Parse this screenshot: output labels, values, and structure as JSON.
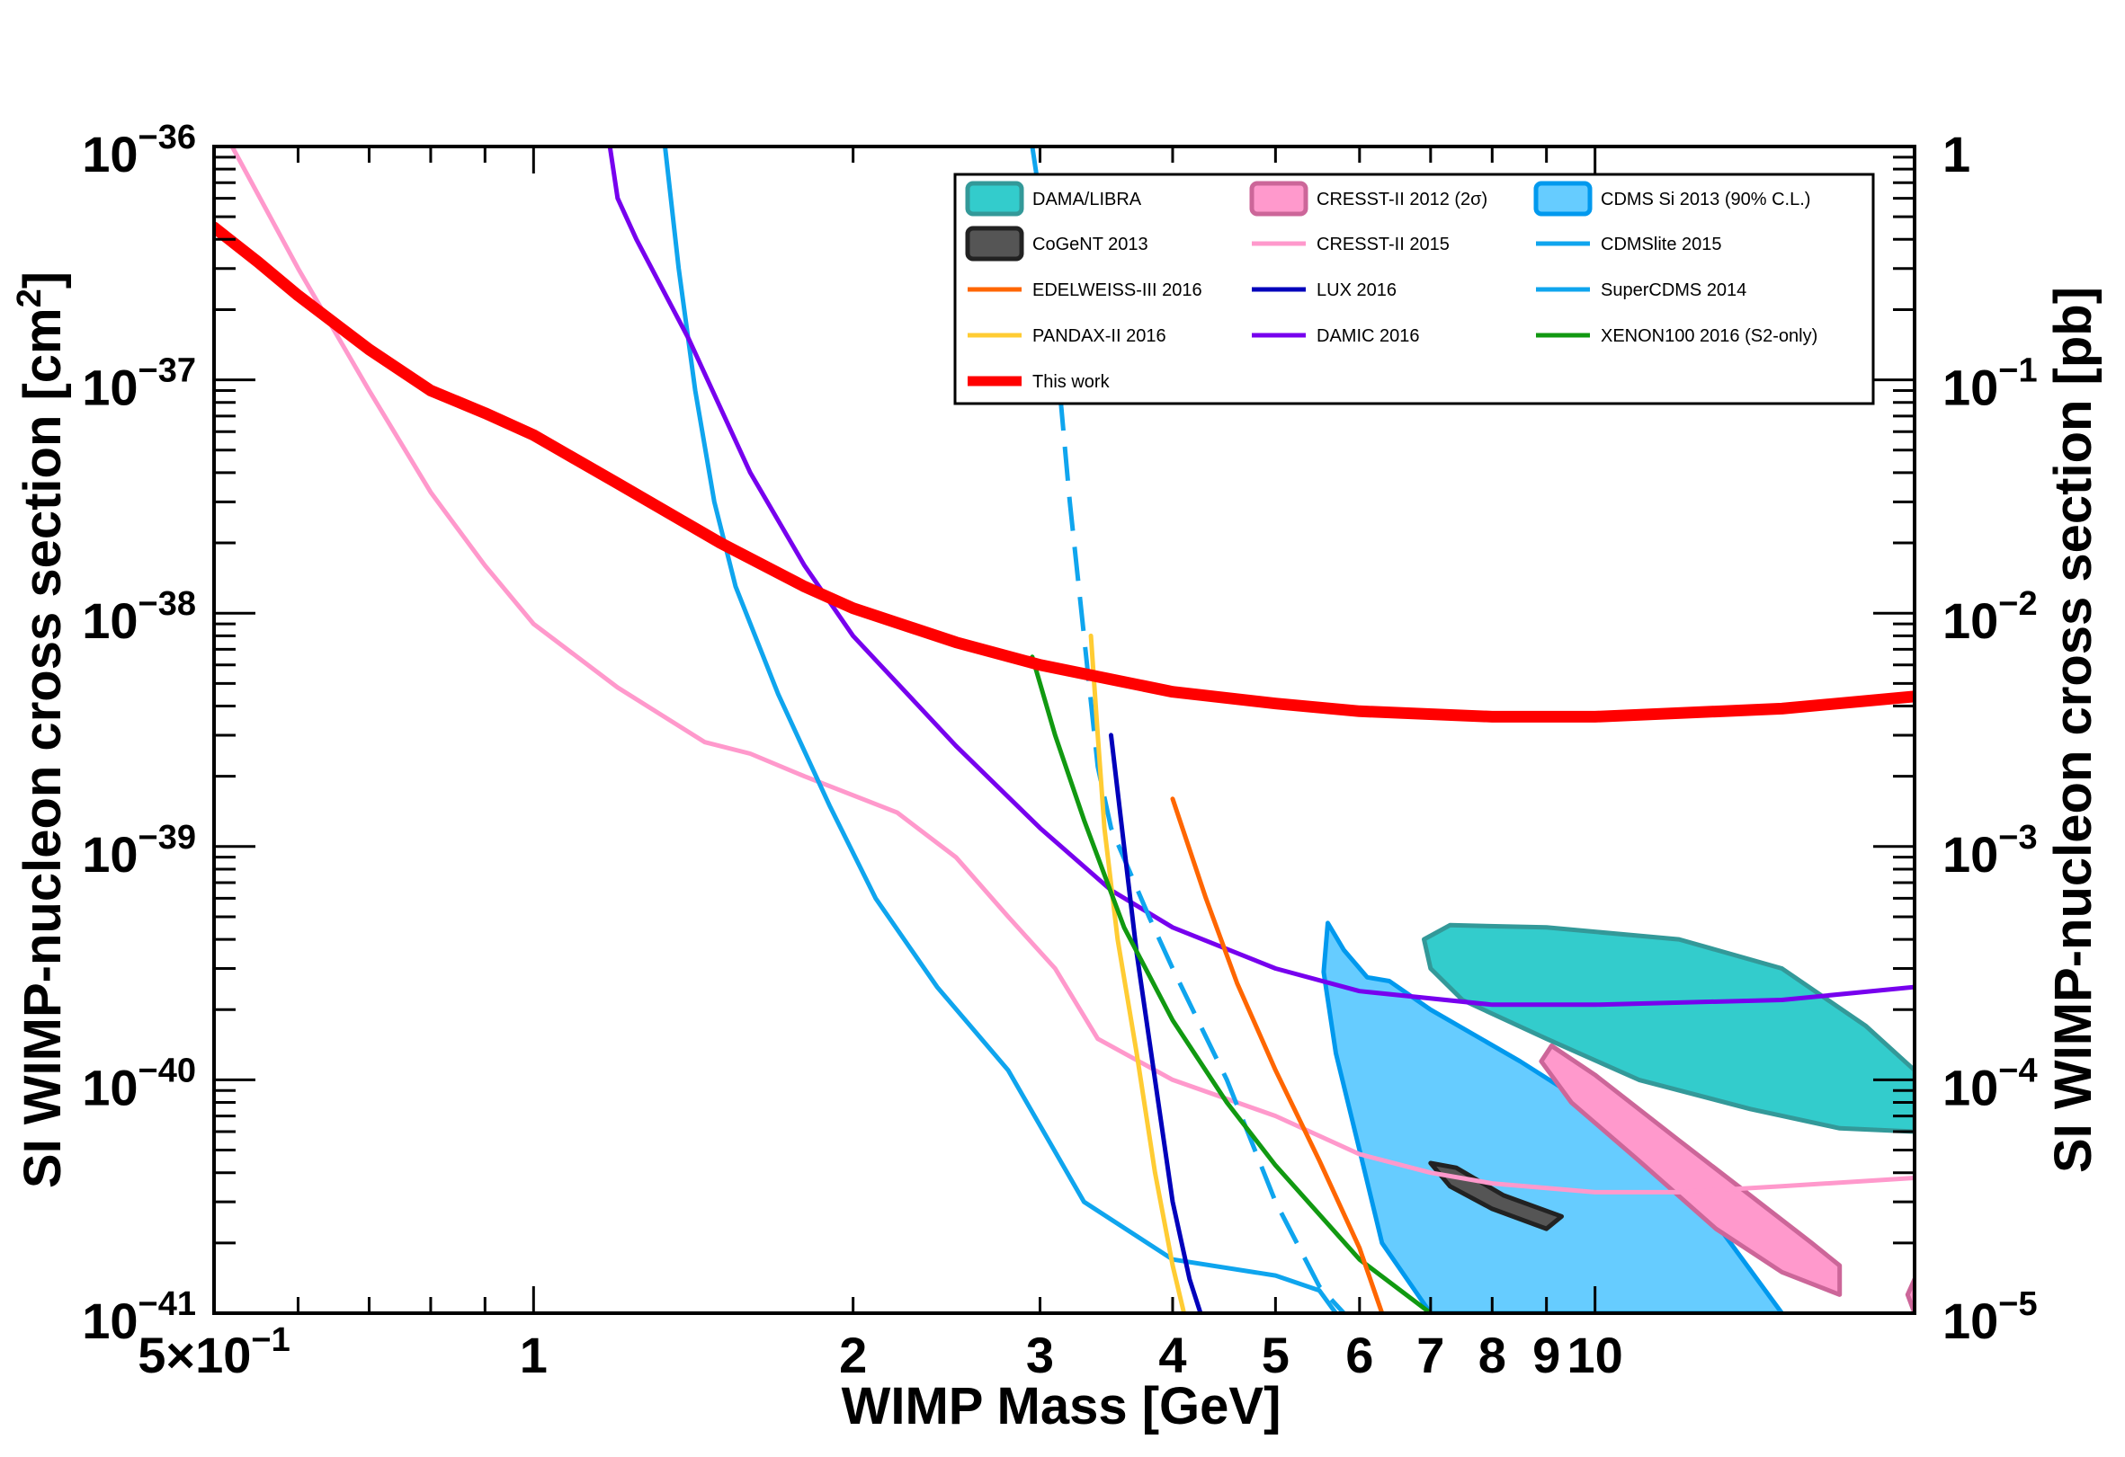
{
  "chart_data": {
    "type": "line",
    "xscale": "log",
    "yscale": "log",
    "xlim": [
      0.5,
      20
    ],
    "ylim": [
      1e-41,
      1e-36
    ],
    "y2lim": [
      1e-05,
      1
    ],
    "xlabel": "WIMP Mass [GeV]",
    "ylabel": "SI WIMP-nucleon cross section [cm",
    "ylabel_sup": "2",
    "ylabel_end": "]",
    "y2label": "SI WIMP-nucleon cross section [pb]",
    "x_tick_labels": [
      {
        "v": 0.5,
        "t": "5×10",
        "sup": "−1"
      },
      {
        "v": 1,
        "t": "1"
      },
      {
        "v": 2,
        "t": "2"
      },
      {
        "v": 3,
        "t": "3"
      },
      {
        "v": 4,
        "t": "4"
      },
      {
        "v": 5,
        "t": "5"
      },
      {
        "v": 6,
        "t": "6"
      },
      {
        "v": 7,
        "t": "7"
      },
      {
        "v": 8,
        "t": "8"
      },
      {
        "v": 9,
        "t": "9"
      },
      {
        "v": 10,
        "t": "10"
      }
    ],
    "y_tick_labels": [
      {
        "e": -36,
        "t": "10",
        "sup": "−36"
      },
      {
        "e": -37,
        "t": "10",
        "sup": "−37"
      },
      {
        "e": -38,
        "t": "10",
        "sup": "−38"
      },
      {
        "e": -39,
        "t": "10",
        "sup": "−39"
      },
      {
        "e": -40,
        "t": "10",
        "sup": "−40"
      },
      {
        "e": -41,
        "t": "10",
        "sup": "−41"
      }
    ],
    "y2_tick_labels": [
      {
        "e": -36,
        "t": "1",
        "sup": ""
      },
      {
        "e": -37,
        "t": "10",
        "sup": "−1"
      },
      {
        "e": -38,
        "t": "10",
        "sup": "−2"
      },
      {
        "e": -39,
        "t": "10",
        "sup": "−3"
      },
      {
        "e": -40,
        "t": "10",
        "sup": "−4"
      },
      {
        "e": -41,
        "t": "10",
        "sup": "−5"
      }
    ],
    "legend": [
      {
        "label": "DAMA/LIBRA",
        "kind": "box",
        "color": "#33cccc",
        "stroke": "#339999"
      },
      {
        "label": "CRESST-II 2012 (2σ)",
        "kind": "box",
        "color": "#ff99cc",
        "stroke": "#cc6699"
      },
      {
        "label": "CDMS Si 2013 (90% C.L.)",
        "kind": "box",
        "color": "#66ccff",
        "stroke": "#0099ee"
      },
      {
        "label": "CoGeNT 2013",
        "kind": "box",
        "color": "#555555",
        "stroke": "#222222"
      },
      {
        "label": "CRESST-II 2015",
        "kind": "line",
        "color": "#ff99cc"
      },
      {
        "label": "CDMSlite 2015",
        "kind": "line",
        "color": "#0fa5ee"
      },
      {
        "label": "EDELWEISS-III 2016",
        "kind": "line",
        "color": "#ff6600"
      },
      {
        "label": "LUX 2016",
        "kind": "line",
        "color": "#0000bb"
      },
      {
        "label": "SuperCDMS 2014",
        "kind": "line",
        "color": "#0fa5ee"
      },
      {
        "label": "PANDAX-II 2016",
        "kind": "line",
        "color": "#ffcc33"
      },
      {
        "label": "DAMIC 2016",
        "kind": "line",
        "color": "#7700ee"
      },
      {
        "label": "XENON100 2016 (S2-only)",
        "kind": "line",
        "color": "#119911"
      },
      {
        "label": "This work",
        "kind": "thickline",
        "color": "#ff0000"
      }
    ],
    "series": [
      {
        "name": "This work",
        "color": "#ff0000",
        "width": 13,
        "points": [
          [
            0.5,
            4.5e-37
          ],
          [
            0.55,
            3.2e-37
          ],
          [
            0.6,
            2.3e-37
          ],
          [
            0.7,
            1.35e-37
          ],
          [
            0.8,
            9e-38
          ],
          [
            0.9,
            7.2e-38
          ],
          [
            1.0,
            5.8e-38
          ],
          [
            1.2,
            3.6e-38
          ],
          [
            1.5,
            2e-38
          ],
          [
            1.8,
            1.3e-38
          ],
          [
            2.0,
            1.05e-38
          ],
          [
            2.5,
            7.5e-39
          ],
          [
            3.0,
            6e-39
          ],
          [
            4.0,
            4.6e-39
          ],
          [
            5.0,
            4.1e-39
          ],
          [
            6.0,
            3.8e-39
          ],
          [
            8.0,
            3.6e-39
          ],
          [
            10.0,
            3.6e-39
          ],
          [
            15.0,
            3.9e-39
          ],
          [
            20.0,
            4.4e-39
          ]
        ]
      },
      {
        "name": "CRESST-II 2015",
        "color": "#ff99cc",
        "width": 5,
        "points": [
          [
            0.52,
            1e-36
          ],
          [
            0.6,
            3e-37
          ],
          [
            0.7,
            9e-38
          ],
          [
            0.8,
            3.3e-38
          ],
          [
            0.9,
            1.6e-38
          ],
          [
            1.0,
            9e-39
          ],
          [
            1.2,
            4.8e-39
          ],
          [
            1.45,
            2.8e-39
          ],
          [
            1.6,
            2.5e-39
          ],
          [
            1.8,
            2e-39
          ],
          [
            2.2,
            1.4e-39
          ],
          [
            2.5,
            9e-40
          ],
          [
            2.8,
            5e-40
          ],
          [
            3.1,
            3e-40
          ],
          [
            3.4,
            1.5e-40
          ],
          [
            4.0,
            1e-40
          ],
          [
            5.0,
            7e-41
          ],
          [
            6.0,
            4.8e-41
          ],
          [
            7.0,
            4e-41
          ],
          [
            8.0,
            3.6e-41
          ],
          [
            10.0,
            3.3e-41
          ],
          [
            12.0,
            3.3e-41
          ],
          [
            15.0,
            3.5e-41
          ],
          [
            20.0,
            3.8e-41
          ]
        ]
      },
      {
        "name": "SuperCDMS 2014",
        "color": "#0fa5ee",
        "width": 5,
        "points": [
          [
            1.33,
            1e-36
          ],
          [
            1.37,
            3e-37
          ],
          [
            1.42,
            9e-38
          ],
          [
            1.48,
            3e-38
          ],
          [
            1.55,
            1.3e-38
          ],
          [
            1.7,
            4.5e-39
          ],
          [
            1.9,
            1.5e-39
          ],
          [
            2.1,
            6e-40
          ],
          [
            2.4,
            2.5e-40
          ],
          [
            2.8,
            1.1e-40
          ],
          [
            3.3,
            3e-41
          ],
          [
            4.0,
            1.7e-41
          ],
          [
            5.0,
            1.45e-41
          ],
          [
            5.5,
            1.25e-41
          ],
          [
            5.7,
            1e-41
          ]
        ]
      },
      {
        "name": "DAMIC 2016",
        "color": "#7700ee",
        "width": 5,
        "points": [
          [
            1.18,
            1e-36
          ],
          [
            1.2,
            6e-37
          ],
          [
            1.25,
            4e-37
          ],
          [
            1.4,
            1.5e-37
          ],
          [
            1.6,
            4e-38
          ],
          [
            1.8,
            1.6e-38
          ],
          [
            2.0,
            8e-39
          ],
          [
            2.5,
            2.7e-39
          ],
          [
            3.0,
            1.2e-39
          ],
          [
            3.5,
            6.5e-40
          ],
          [
            4.0,
            4.5e-40
          ],
          [
            5.0,
            3e-40
          ],
          [
            6.0,
            2.4e-40
          ],
          [
            8.0,
            2.1e-40
          ],
          [
            10.0,
            2.1e-40
          ],
          [
            15.0,
            2.2e-40
          ],
          [
            20.0,
            2.5e-40
          ]
        ]
      },
      {
        "name": "CDMSlite 2015",
        "color": "#0fa5ee",
        "width": 5,
        "dash": "38 18",
        "points": [
          [
            2.95,
            1e-36
          ],
          [
            3.0,
            6e-37
          ],
          [
            3.1,
            1.5e-37
          ],
          [
            3.2,
            3e-38
          ],
          [
            3.3,
            8e-39
          ],
          [
            3.4,
            2.2e-39
          ],
          [
            3.5,
            1.2e-39
          ],
          [
            3.8,
            5e-40
          ],
          [
            4.0,
            3e-40
          ],
          [
            4.5,
            1e-40
          ],
          [
            5.0,
            3e-41
          ],
          [
            5.5,
            1.3e-41
          ],
          [
            5.8,
            1e-41
          ]
        ]
      },
      {
        "name": "PANDAX-II 2016",
        "color": "#ffcc33",
        "width": 5,
        "points": [
          [
            3.35,
            8e-39
          ],
          [
            3.4,
            3e-39
          ],
          [
            3.45,
            1.2e-39
          ],
          [
            3.55,
            4e-40
          ],
          [
            3.7,
            1.3e-40
          ],
          [
            3.85,
            4e-41
          ],
          [
            4.0,
            1.6e-41
          ],
          [
            4.1,
            1e-41
          ]
        ]
      },
      {
        "name": "LUX 2016",
        "color": "#0000bb",
        "width": 5,
        "points": [
          [
            3.5,
            3e-39
          ],
          [
            3.6,
            1e-39
          ],
          [
            3.7,
            3.5e-40
          ],
          [
            3.85,
            1e-40
          ],
          [
            4.0,
            3e-41
          ],
          [
            4.15,
            1.4e-41
          ],
          [
            4.25,
            1e-41
          ]
        ]
      },
      {
        "name": "XENON100 2016 (S2-only)",
        "color": "#119911",
        "width": 5,
        "points": [
          [
            2.95,
            6.5e-39
          ],
          [
            3.1,
            3e-39
          ],
          [
            3.3,
            1.3e-39
          ],
          [
            3.6,
            4.5e-40
          ],
          [
            4.0,
            1.8e-40
          ],
          [
            4.5,
            8e-41
          ],
          [
            5.0,
            4.3e-41
          ],
          [
            6.0,
            1.7e-41
          ],
          [
            7.0,
            1e-41
          ]
        ]
      },
      {
        "name": "EDELWEISS-III 2016",
        "color": "#ff6600",
        "width": 5,
        "points": [
          [
            4.0,
            1.6e-39
          ],
          [
            4.3,
            6e-40
          ],
          [
            4.6,
            2.6e-40
          ],
          [
            5.0,
            1.1e-40
          ],
          [
            5.5,
            4.5e-41
          ],
          [
            6.0,
            1.9e-41
          ],
          [
            6.3,
            1e-41
          ]
        ]
      }
    ],
    "regions": [
      {
        "name": "DAMA/LIBRA",
        "color": "#33cccc",
        "stroke": "#339999",
        "points": [
          [
            6.9,
            4e-40
          ],
          [
            7.3,
            4.6e-40
          ],
          [
            9.0,
            4.5e-40
          ],
          [
            12.0,
            4e-40
          ],
          [
            15.0,
            3e-40
          ],
          [
            18.0,
            1.7e-40
          ],
          [
            20.0,
            1.1e-40
          ],
          [
            20.0,
            6e-41
          ],
          [
            17.0,
            6.2e-41
          ],
          [
            14.0,
            7.5e-41
          ],
          [
            11.0,
            1e-40
          ],
          [
            9.0,
            1.5e-40
          ],
          [
            7.5,
            2.2e-40
          ],
          [
            7.0,
            3e-40
          ]
        ]
      },
      {
        "name": "CDMS Si 2013 (90% C.L.)",
        "color": "#66ccff",
        "stroke": "#0099ee",
        "points": [
          [
            5.6,
            4.7e-40
          ],
          [
            5.8,
            3.6e-40
          ],
          [
            6.1,
            2.75e-40
          ],
          [
            6.4,
            2.65e-40
          ],
          [
            7.0,
            2e-40
          ],
          [
            8.5,
            1.2e-40
          ],
          [
            10.0,
            7.5e-41
          ],
          [
            12.0,
            4e-41
          ],
          [
            15.0,
            1e-41
          ],
          [
            7.0,
            1e-41
          ],
          [
            6.3,
            2e-41
          ],
          [
            6.0,
            5e-41
          ],
          [
            5.7,
            1.3e-40
          ],
          [
            5.55,
            2.9e-40
          ]
        ]
      },
      {
        "name": "CRESST-II 2012 (2σ)",
        "color": "#ff99cc",
        "stroke": "#cc6699",
        "points": [
          [
            9.1,
            1.4e-40
          ],
          [
            10.0,
            1.05e-40
          ],
          [
            12.0,
            5.5e-41
          ],
          [
            14.0,
            3.2e-41
          ],
          [
            16.0,
            2e-41
          ],
          [
            17.0,
            1.6e-41
          ],
          [
            17.0,
            1.2e-41
          ],
          [
            15.0,
            1.5e-41
          ],
          [
            13.0,
            2.3e-41
          ],
          [
            11.0,
            4.5e-41
          ],
          [
            9.5,
            8e-41
          ],
          [
            8.9,
            1.2e-40
          ]
        ]
      },
      {
        "name": "CoGeNT 2013",
        "color": "#555555",
        "stroke": "#222222",
        "points": [
          [
            7.0,
            4.4e-41
          ],
          [
            7.4,
            4.2e-41
          ],
          [
            8.2,
            3.2e-41
          ],
          [
            9.3,
            2.6e-41
          ],
          [
            9.0,
            2.3e-41
          ],
          [
            8.0,
            2.8e-41
          ],
          [
            7.3,
            3.5e-41
          ]
        ]
      },
      {
        "name": "CRESST-II 2012 (2σ)",
        "color": "#ff99cc",
        "stroke": "#cc6699",
        "points": [
          [
            20.0,
            1.4e-41
          ],
          [
            19.7,
            1.2e-41
          ],
          [
            20.0,
            1e-41
          ]
        ]
      }
    ]
  }
}
